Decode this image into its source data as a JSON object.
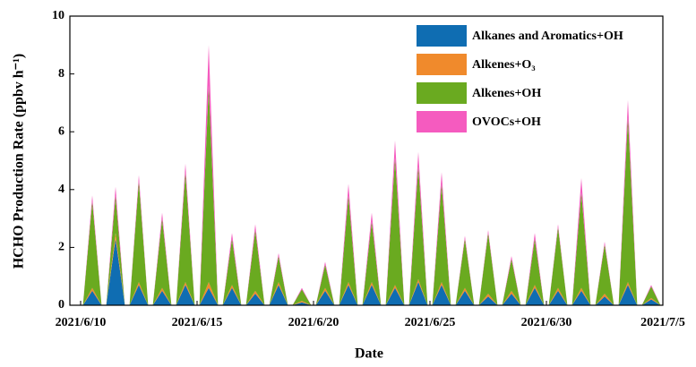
{
  "chart_data": {
    "type": "stacked-area",
    "x_label": "Date",
    "y_label": "HCHO Production Rate (ppbv h⁻¹)",
    "x": [
      "2021/6/10",
      "2021/6/11",
      "2021/6/12",
      "2021/6/13",
      "2021/6/14",
      "2021/6/15",
      "2021/6/16",
      "2021/6/17",
      "2021/6/18",
      "2021/6/19",
      "2021/6/20",
      "2021/6/21",
      "2021/6/22",
      "2021/6/23",
      "2021/6/24",
      "2021/6/25",
      "2021/6/26",
      "2021/6/27",
      "2021/6/28",
      "2021/6/29",
      "2021/6/30",
      "2021/7/1",
      "2021/7/2",
      "2021/7/3",
      "2021/7/4"
    ],
    "series": [
      {
        "name": "Alkanes and Aromatics+OH",
        "color": "#0f6db2",
        "values": [
          0.5,
          2.3,
          0.7,
          0.5,
          0.7,
          0.6,
          0.6,
          0.4,
          0.7,
          0.1,
          0.5,
          0.7,
          0.7,
          0.6,
          0.8,
          0.7,
          0.5,
          0.3,
          0.4,
          0.6,
          0.5,
          0.5,
          0.3,
          0.7,
          0.2
        ]
      },
      {
        "name": "Alkenes+O₃",
        "color": "#f08a2c",
        "values": [
          0.1,
          0.2,
          0.1,
          0.1,
          0.1,
          0.2,
          0.1,
          0.1,
          0.1,
          0.05,
          0.1,
          0.1,
          0.1,
          0.1,
          0.1,
          0.1,
          0.1,
          0.1,
          0.1,
          0.1,
          0.1,
          0.1,
          0.1,
          0.1,
          0.05
        ]
      },
      {
        "name": "Alkenes+OH",
        "color": "#6aaa20",
        "values": [
          3.0,
          1.3,
          3.5,
          2.4,
          3.8,
          6.8,
          1.6,
          2.1,
          0.9,
          0.4,
          0.8,
          3.0,
          2.1,
          4.4,
          3.9,
          3.4,
          1.7,
          2.1,
          1.1,
          1.6,
          2.1,
          3.3,
          1.7,
          5.7,
          0.4
        ]
      },
      {
        "name": "OVOCs+OH",
        "color": "#f55bbf",
        "values": [
          0.2,
          0.3,
          0.2,
          0.2,
          0.3,
          1.4,
          0.2,
          0.2,
          0.1,
          0.05,
          0.1,
          0.4,
          0.3,
          0.6,
          0.5,
          0.4,
          0.1,
          0.1,
          0.1,
          0.2,
          0.1,
          0.5,
          0.1,
          0.6,
          0.05
        ]
      }
    ],
    "xlim": [
      "2021/6/10",
      "2021/7/5"
    ],
    "xticks": [
      "2021/6/10",
      "2021/6/15",
      "2021/6/20",
      "2021/6/25",
      "2021/6/30",
      "2021/7/5"
    ],
    "ylim": [
      0,
      10
    ],
    "yticks": [
      0,
      2,
      4,
      6,
      8,
      10
    ],
    "legend": "upper right"
  }
}
